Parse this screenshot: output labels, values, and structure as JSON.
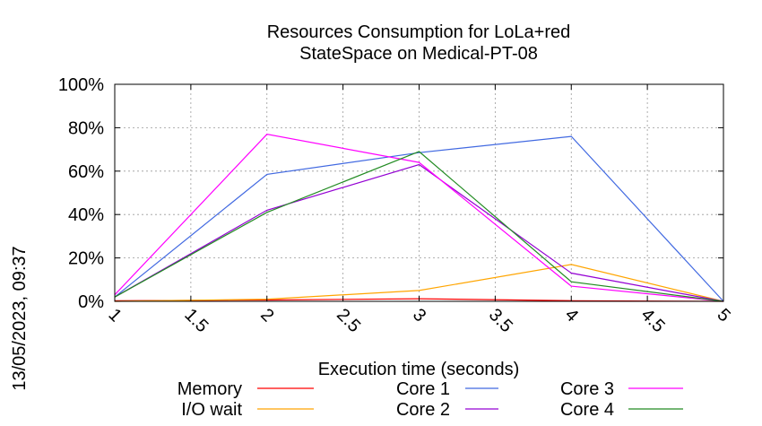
{
  "chart_data": {
    "type": "line",
    "title_lines": [
      "Resources Consumption for LoLa+red",
      "StateSpace on Medical-PT-08"
    ],
    "xlabel": "Execution time (seconds)",
    "ylabel": "",
    "side_label": "13/05/2023, 09:37",
    "xlim": [
      1,
      5
    ],
    "ylim": [
      0,
      100
    ],
    "x_ticks": [
      {
        "value": 1,
        "label": "1"
      },
      {
        "value": 1.5,
        "label": "1.5"
      },
      {
        "value": 2,
        "label": "2"
      },
      {
        "value": 2.5,
        "label": "2.5"
      },
      {
        "value": 3,
        "label": "3"
      },
      {
        "value": 3.5,
        "label": "3.5"
      },
      {
        "value": 4,
        "label": "4"
      },
      {
        "value": 4.5,
        "label": "4.5"
      },
      {
        "value": 5,
        "label": "5"
      }
    ],
    "y_ticks": [
      {
        "value": 0,
        "label": "0%"
      },
      {
        "value": 20,
        "label": "20%"
      },
      {
        "value": 40,
        "label": "40%"
      },
      {
        "value": 60,
        "label": "60%"
      },
      {
        "value": 80,
        "label": "80%"
      },
      {
        "value": 100,
        "label": "100%"
      }
    ],
    "grid": true,
    "legend_position": "bottom",
    "x": [
      1,
      2,
      3,
      4,
      5
    ],
    "series": [
      {
        "name": "Memory",
        "color": "#ff0000",
        "values": [
          0.3,
          0.6,
          1.2,
          0.3,
          0
        ]
      },
      {
        "name": "I/O wait",
        "color": "#ffa500",
        "values": [
          0,
          1,
          5,
          17,
          0
        ]
      },
      {
        "name": "Core 1",
        "color": "#4169e1",
        "values": [
          2,
          58.5,
          68.5,
          76,
          0
        ]
      },
      {
        "name": "Core 2",
        "color": "#9400d3",
        "values": [
          2,
          42,
          63,
          13,
          0
        ]
      },
      {
        "name": "Core 3",
        "color": "#ff00ff",
        "values": [
          3,
          77,
          64,
          7,
          0
        ]
      },
      {
        "name": "Core 4",
        "color": "#228b22",
        "values": [
          2,
          41,
          69,
          9,
          0
        ]
      }
    ]
  }
}
